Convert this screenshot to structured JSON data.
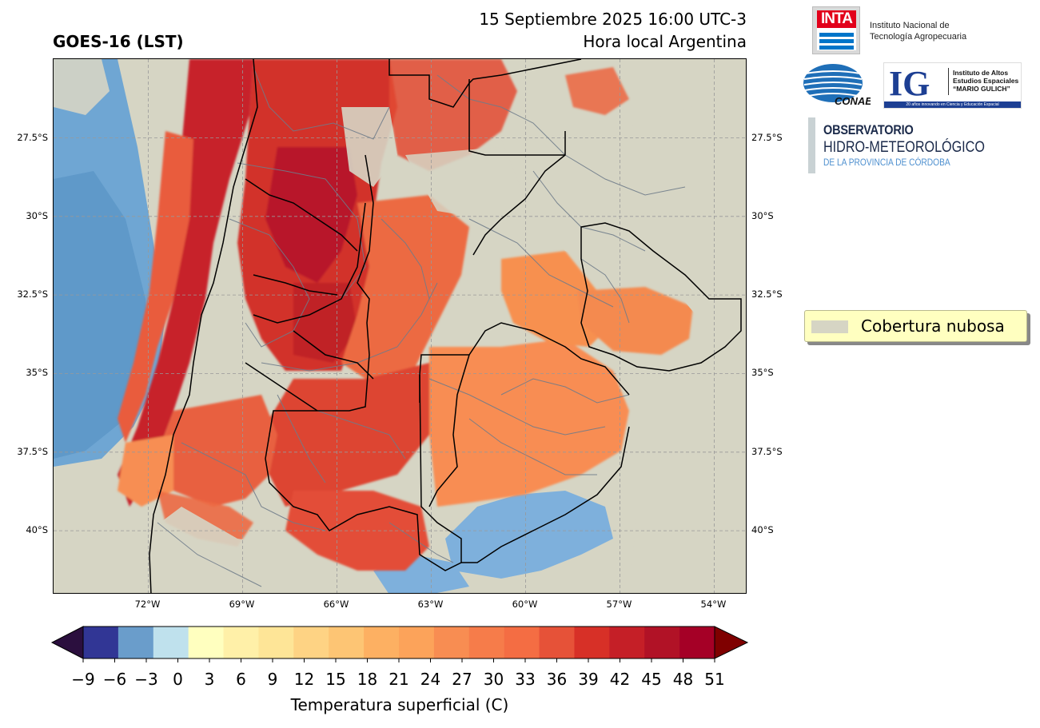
{
  "header": {
    "title": "GOES-16 (LST)",
    "datetime": "15 Septiembre 2025 16:00 UTC-3",
    "local_time_note": "Hora local Argentina"
  },
  "logos": {
    "inta": {
      "mark": "INTA",
      "text_lines": [
        "Instituto Nacional de",
        "Tecnología Agropecuaria"
      ]
    },
    "conae": {
      "mark": "CONAE"
    },
    "ig": {
      "mark": "IG",
      "text_lines": [
        "Instituto de Altos",
        "Estudios Espaciales",
        "“MARIO GULICH”"
      ],
      "band": "20 años innovando en Ciencia y Educación Espacial"
    },
    "observatorio": {
      "line1": "OBSERVATORIO",
      "line2": "HIDRO-METEOROLÓGICO",
      "line3": "DE LA PROVINCIA DE CÓRDOBA"
    }
  },
  "legend": {
    "cloud_cover_label": "Cobertura nubosa",
    "cloud_cover_color": "#d6d5c4"
  },
  "map": {
    "lat_labels": [
      "27.5°S",
      "30°S",
      "32.5°S",
      "35°S",
      "37.5°S",
      "40°S"
    ],
    "lat_values": [
      -27.5,
      -30,
      -32.5,
      -35,
      -37.5,
      -40
    ],
    "lon_labels": [
      "72°W",
      "69°W",
      "66°W",
      "63°W",
      "60°W",
      "57°W",
      "54°W"
    ],
    "lon_values": [
      -72,
      -69,
      -66,
      -63,
      -60,
      -57,
      -54
    ],
    "extent": {
      "lon": [
        -75,
        -53
      ],
      "lat": [
        -42,
        -25
      ]
    },
    "gridlines": true
  },
  "colorbar": {
    "label": "Temperatura superficial (C)",
    "ticks": [
      "−9",
      "−6",
      "−3",
      "0",
      "3",
      "6",
      "9",
      "12",
      "15",
      "18",
      "21",
      "24",
      "27",
      "30",
      "33",
      "36",
      "39",
      "42",
      "45",
      "48",
      "51"
    ],
    "boundaries": [
      -9,
      -6,
      -3,
      0,
      3,
      6,
      9,
      12,
      15,
      18,
      21,
      24,
      27,
      30,
      33,
      36,
      39,
      42,
      45,
      48,
      51
    ],
    "colors": [
      "#313695",
      "#6a9dcb",
      "#bfe1ed",
      "#ffffbf",
      "#fff0a8",
      "#fee597",
      "#fed384",
      "#fdc574",
      "#fdb062",
      "#fca35a",
      "#f88d52",
      "#f67c4a",
      "#f46d43",
      "#e65238",
      "#d73027",
      "#c51f27",
      "#b11226",
      "#a50026"
    ],
    "under_color": "#2b0f3e",
    "over_color": "#7f0000"
  }
}
